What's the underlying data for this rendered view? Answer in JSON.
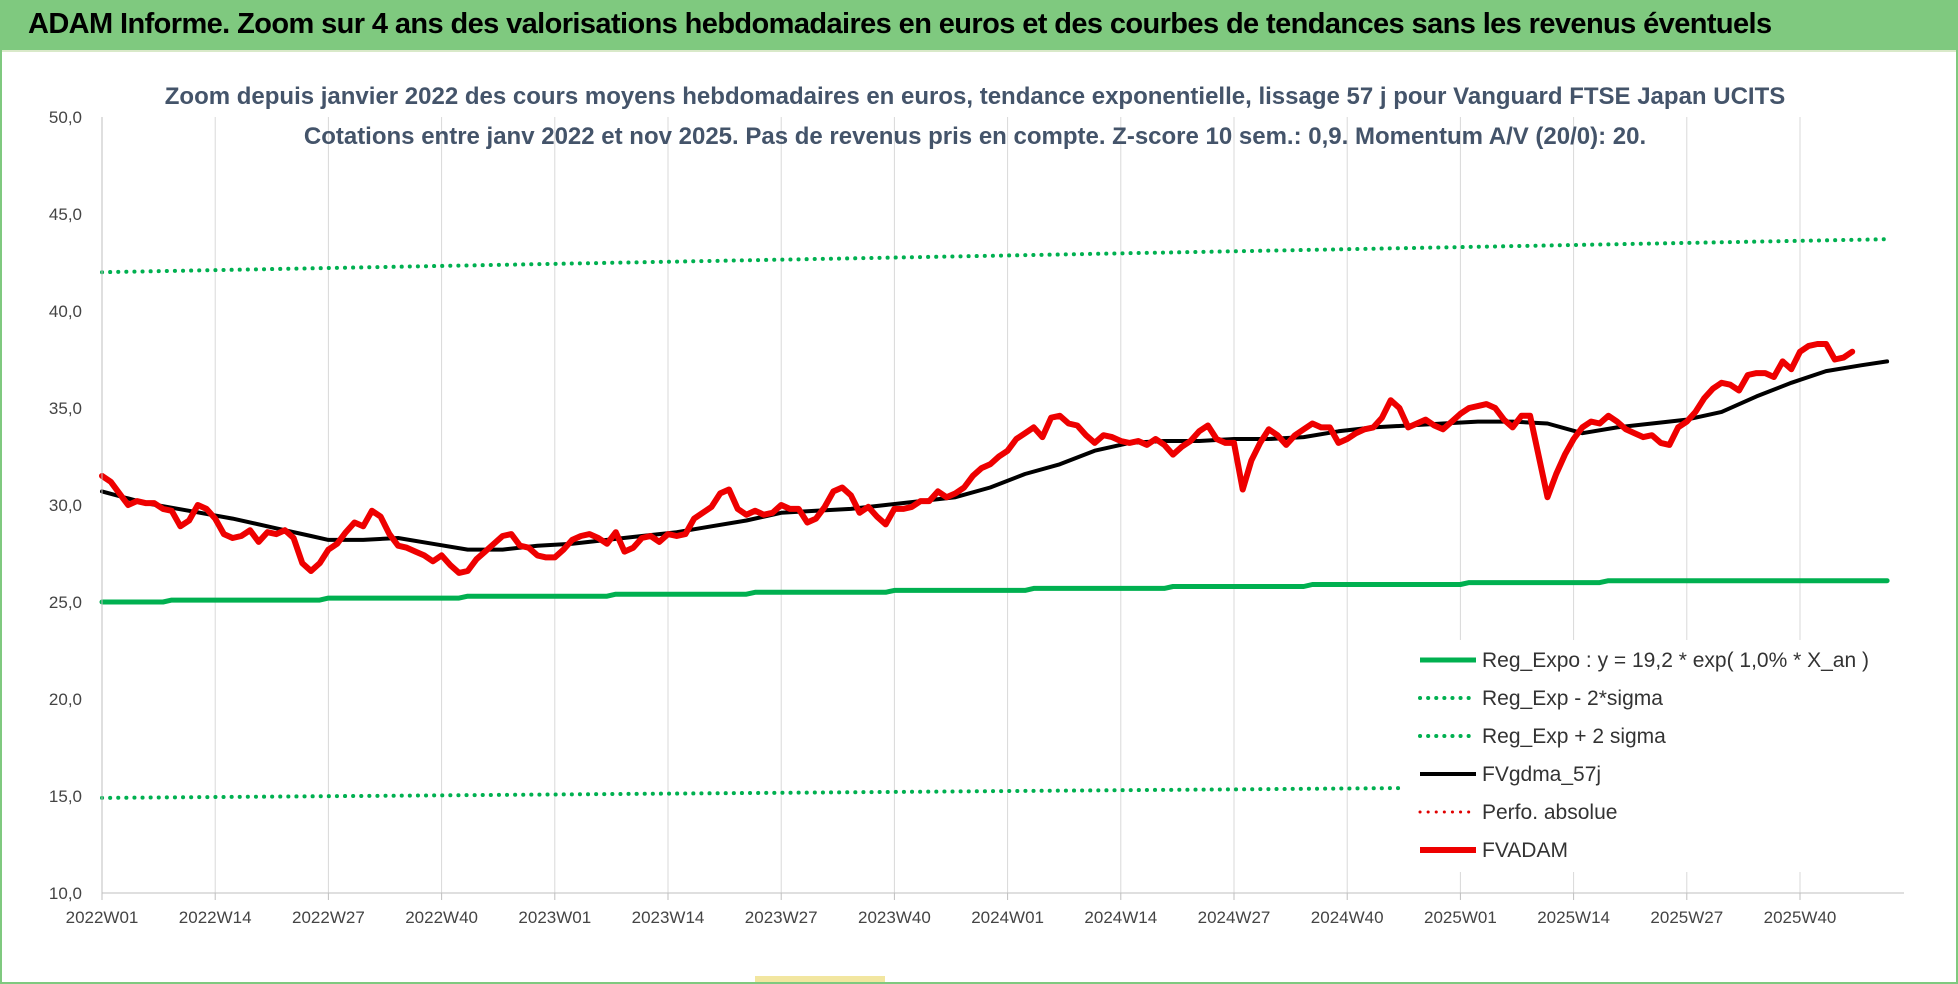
{
  "banner": {
    "title": "ADAM Informe. Zoom sur 4 ans des valorisations hebdomadaires en euros et des courbes de tendances sans les revenus éventuels",
    "color": "#7fc97f"
  },
  "chart_data": {
    "type": "line",
    "title": "Zoom depuis janvier 2022 des cours moyens hebdomadaires en euros, tendance exponentielle, lissage 57 j pour Vanguard FTSE Japan UCITS",
    "subtitle": "Cotations entre janv 2022 et nov 2025. Pas de revenus pris en compte. Z-score 10 sem.: 0,9. Momentum A/V (20/0): 20.",
    "xlabel": "",
    "ylabel": "",
    "ylim": [
      10,
      50
    ],
    "yticks": [
      "10,0",
      "15,0",
      "20,0",
      "25,0",
      "30,0",
      "35,0",
      "40,0",
      "45,0",
      "50,0"
    ],
    "xlim": [
      0,
      196
    ],
    "x_ticks": [
      {
        "label": "2022W01",
        "x": 0
      },
      {
        "label": "2022W14",
        "x": 13
      },
      {
        "label": "2022W27",
        "x": 26
      },
      {
        "label": "2022W40",
        "x": 39
      },
      {
        "label": "2023W01",
        "x": 52
      },
      {
        "label": "2023W14",
        "x": 65
      },
      {
        "label": "2023W27",
        "x": 78
      },
      {
        "label": "2023W40",
        "x": 91
      },
      {
        "label": "2024W01",
        "x": 104
      },
      {
        "label": "2024W14",
        "x": 117
      },
      {
        "label": "2024W27",
        "x": 130
      },
      {
        "label": "2024W40",
        "x": 143
      },
      {
        "label": "2025W01",
        "x": 156
      },
      {
        "label": "2025W14",
        "x": 169
      },
      {
        "label": "2025W27",
        "x": 182
      },
      {
        "label": "2025W40",
        "x": 195
      }
    ],
    "grid": "vertical",
    "legend_position": "right",
    "series": [
      {
        "name": "Reg_Expo : y = 19,2 * exp( 1,0% * X_an )",
        "color": "#00b050",
        "style": "solid",
        "width": 5,
        "points": [
          [
            0,
            25.0
          ],
          [
            7,
            25.0
          ],
          [
            8,
            25.1
          ],
          [
            25,
            25.1
          ],
          [
            26,
            25.2
          ],
          [
            41,
            25.2
          ],
          [
            42,
            25.3
          ],
          [
            58,
            25.3
          ],
          [
            59,
            25.4
          ],
          [
            74,
            25.4
          ],
          [
            75,
            25.5
          ],
          [
            90,
            25.5
          ],
          [
            91,
            25.6
          ],
          [
            106,
            25.6
          ],
          [
            107,
            25.7
          ],
          [
            122,
            25.7
          ],
          [
            123,
            25.8
          ],
          [
            138,
            25.8
          ],
          [
            139,
            25.9
          ],
          [
            156,
            25.9
          ],
          [
            157,
            26.0
          ],
          [
            172,
            26.0
          ],
          [
            173,
            26.1
          ],
          [
            205,
            26.1
          ]
        ]
      },
      {
        "name": "Reg_Exp - 2*sigma",
        "color": "#00b050",
        "style": "dotted",
        "width": 4,
        "points": [
          [
            0,
            14.9
          ],
          [
            205,
            15.6
          ]
        ]
      },
      {
        "name": "Reg_Exp + 2 sigma",
        "color": "#00b050",
        "style": "dotted",
        "width": 4,
        "points": [
          [
            0,
            42.0
          ],
          [
            205,
            43.7
          ]
        ]
      },
      {
        "name": "FVgdma_57j",
        "color": "#000000",
        "style": "solid",
        "width": 4,
        "points": [
          [
            0,
            30.7
          ],
          [
            5,
            30.1
          ],
          [
            10,
            29.7
          ],
          [
            15,
            29.3
          ],
          [
            20,
            28.8
          ],
          [
            24,
            28.4
          ],
          [
            26,
            28.2
          ],
          [
            30,
            28.2
          ],
          [
            34,
            28.3
          ],
          [
            38,
            28.0
          ],
          [
            42,
            27.7
          ],
          [
            46,
            27.7
          ],
          [
            50,
            27.9
          ],
          [
            54,
            28.0
          ],
          [
            58,
            28.2
          ],
          [
            62,
            28.4
          ],
          [
            66,
            28.6
          ],
          [
            70,
            28.9
          ],
          [
            74,
            29.2
          ],
          [
            78,
            29.6
          ],
          [
            82,
            29.7
          ],
          [
            86,
            29.8
          ],
          [
            90,
            30.0
          ],
          [
            94,
            30.2
          ],
          [
            98,
            30.4
          ],
          [
            102,
            30.9
          ],
          [
            106,
            31.6
          ],
          [
            110,
            32.1
          ],
          [
            114,
            32.8
          ],
          [
            118,
            33.2
          ],
          [
            122,
            33.3
          ],
          [
            126,
            33.3
          ],
          [
            130,
            33.4
          ],
          [
            134,
            33.4
          ],
          [
            138,
            33.5
          ],
          [
            142,
            33.8
          ],
          [
            146,
            34.0
          ],
          [
            150,
            34.1
          ],
          [
            154,
            34.2
          ],
          [
            158,
            34.3
          ],
          [
            162,
            34.3
          ],
          [
            166,
            34.2
          ],
          [
            170,
            33.7
          ],
          [
            174,
            34.0
          ],
          [
            178,
            34.2
          ],
          [
            182,
            34.4
          ],
          [
            186,
            34.8
          ],
          [
            190,
            35.6
          ],
          [
            194,
            36.3
          ],
          [
            198,
            36.9
          ],
          [
            202,
            37.2
          ],
          [
            205,
            37.4
          ]
        ]
      },
      {
        "name": "Perfo. absolue",
        "color": "#e00000",
        "style": "dotted",
        "width": 3,
        "points": []
      },
      {
        "name": "FVADAM",
        "color": "#ee0000",
        "style": "solid",
        "width": 6,
        "points": [
          [
            0,
            31.5
          ],
          [
            1,
            31.2
          ],
          [
            2,
            30.6
          ],
          [
            3,
            30.0
          ],
          [
            4,
            30.2
          ],
          [
            5,
            30.1
          ],
          [
            6,
            30.1
          ],
          [
            7,
            29.8
          ],
          [
            8,
            29.7
          ],
          [
            9,
            28.9
          ],
          [
            10,
            29.2
          ],
          [
            11,
            30.0
          ],
          [
            12,
            29.8
          ],
          [
            13,
            29.3
          ],
          [
            14,
            28.5
          ],
          [
            15,
            28.3
          ],
          [
            16,
            28.4
          ],
          [
            17,
            28.7
          ],
          [
            18,
            28.1
          ],
          [
            19,
            28.6
          ],
          [
            20,
            28.5
          ],
          [
            21,
            28.7
          ],
          [
            22,
            28.3
          ],
          [
            23,
            27.0
          ],
          [
            24,
            26.6
          ],
          [
            25,
            27.0
          ],
          [
            26,
            27.7
          ],
          [
            27,
            28.0
          ],
          [
            28,
            28.6
          ],
          [
            29,
            29.1
          ],
          [
            30,
            28.9
          ],
          [
            31,
            29.7
          ],
          [
            32,
            29.4
          ],
          [
            33,
            28.5
          ],
          [
            34,
            27.9
          ],
          [
            35,
            27.8
          ],
          [
            36,
            27.6
          ],
          [
            37,
            27.4
          ],
          [
            38,
            27.1
          ],
          [
            39,
            27.4
          ],
          [
            40,
            26.9
          ],
          [
            41,
            26.5
          ],
          [
            42,
            26.6
          ],
          [
            43,
            27.2
          ],
          [
            44,
            27.6
          ],
          [
            45,
            28.0
          ],
          [
            46,
            28.4
          ],
          [
            47,
            28.5
          ],
          [
            48,
            27.9
          ],
          [
            49,
            27.8
          ],
          [
            50,
            27.4
          ],
          [
            51,
            27.3
          ],
          [
            52,
            27.3
          ],
          [
            53,
            27.7
          ],
          [
            54,
            28.2
          ],
          [
            55,
            28.4
          ],
          [
            56,
            28.5
          ],
          [
            57,
            28.3
          ],
          [
            58,
            28.0
          ],
          [
            59,
            28.6
          ],
          [
            60,
            27.6
          ],
          [
            61,
            27.8
          ],
          [
            62,
            28.3
          ],
          [
            63,
            28.4
          ],
          [
            64,
            28.1
          ],
          [
            65,
            28.5
          ],
          [
            66,
            28.4
          ],
          [
            67,
            28.5
          ],
          [
            68,
            29.3
          ],
          [
            69,
            29.6
          ],
          [
            70,
            29.9
          ],
          [
            71,
            30.6
          ],
          [
            72,
            30.8
          ],
          [
            73,
            29.8
          ],
          [
            74,
            29.5
          ],
          [
            75,
            29.7
          ],
          [
            76,
            29.5
          ],
          [
            77,
            29.6
          ],
          [
            78,
            30.0
          ],
          [
            79,
            29.8
          ],
          [
            80,
            29.8
          ],
          [
            81,
            29.1
          ],
          [
            82,
            29.3
          ],
          [
            83,
            29.9
          ],
          [
            84,
            30.7
          ],
          [
            85,
            30.9
          ],
          [
            86,
            30.5
          ],
          [
            87,
            29.6
          ],
          [
            88,
            29.9
          ],
          [
            89,
            29.4
          ],
          [
            90,
            29.0
          ],
          [
            91,
            29.8
          ],
          [
            92,
            29.8
          ],
          [
            93,
            29.9
          ],
          [
            94,
            30.2
          ],
          [
            95,
            30.2
          ],
          [
            96,
            30.7
          ],
          [
            97,
            30.4
          ],
          [
            98,
            30.6
          ],
          [
            99,
            30.9
          ],
          [
            100,
            31.5
          ],
          [
            101,
            31.9
          ],
          [
            102,
            32.1
          ],
          [
            103,
            32.5
          ],
          [
            104,
            32.8
          ],
          [
            105,
            33.4
          ],
          [
            106,
            33.7
          ],
          [
            107,
            34.0
          ],
          [
            108,
            33.5
          ],
          [
            109,
            34.5
          ],
          [
            110,
            34.6
          ],
          [
            111,
            34.2
          ],
          [
            112,
            34.1
          ],
          [
            113,
            33.6
          ],
          [
            114,
            33.2
          ],
          [
            115,
            33.6
          ],
          [
            116,
            33.5
          ],
          [
            117,
            33.3
          ],
          [
            118,
            33.2
          ],
          [
            119,
            33.3
          ],
          [
            120,
            33.1
          ],
          [
            121,
            33.4
          ],
          [
            122,
            33.1
          ],
          [
            123,
            32.6
          ],
          [
            124,
            33.0
          ],
          [
            125,
            33.3
          ],
          [
            126,
            33.8
          ],
          [
            127,
            34.1
          ],
          [
            128,
            33.4
          ],
          [
            129,
            33.2
          ],
          [
            130,
            33.2
          ],
          [
            131,
            30.8
          ],
          [
            132,
            32.3
          ],
          [
            133,
            33.2
          ],
          [
            134,
            33.9
          ],
          [
            135,
            33.6
          ],
          [
            136,
            33.1
          ],
          [
            137,
            33.6
          ],
          [
            138,
            33.9
          ],
          [
            139,
            34.2
          ],
          [
            140,
            34.0
          ],
          [
            141,
            34.0
          ],
          [
            142,
            33.2
          ],
          [
            143,
            33.4
          ],
          [
            144,
            33.7
          ],
          [
            145,
            33.9
          ],
          [
            146,
            34.0
          ],
          [
            147,
            34.5
          ],
          [
            148,
            35.4
          ],
          [
            149,
            35.0
          ],
          [
            150,
            34.0
          ],
          [
            151,
            34.2
          ],
          [
            152,
            34.4
          ],
          [
            153,
            34.1
          ],
          [
            154,
            33.9
          ],
          [
            155,
            34.3
          ],
          [
            156,
            34.7
          ],
          [
            157,
            35.0
          ],
          [
            158,
            35.1
          ],
          [
            159,
            35.2
          ],
          [
            160,
            35.0
          ],
          [
            161,
            34.4
          ],
          [
            162,
            34.0
          ],
          [
            163,
            34.6
          ],
          [
            164,
            34.6
          ],
          [
            165,
            32.5
          ],
          [
            166,
            30.4
          ],
          [
            167,
            31.6
          ],
          [
            168,
            32.6
          ],
          [
            169,
            33.4
          ],
          [
            170,
            34.0
          ],
          [
            171,
            34.3
          ],
          [
            172,
            34.2
          ],
          [
            173,
            34.6
          ],
          [
            174,
            34.3
          ],
          [
            175,
            33.9
          ],
          [
            176,
            33.7
          ],
          [
            177,
            33.5
          ],
          [
            178,
            33.6
          ],
          [
            179,
            33.2
          ],
          [
            180,
            33.1
          ],
          [
            181,
            34.0
          ],
          [
            182,
            34.3
          ],
          [
            183,
            34.8
          ],
          [
            184,
            35.5
          ],
          [
            185,
            36.0
          ],
          [
            186,
            36.3
          ],
          [
            187,
            36.2
          ],
          [
            188,
            35.9
          ],
          [
            189,
            36.7
          ],
          [
            190,
            36.8
          ],
          [
            191,
            36.8
          ],
          [
            192,
            36.6
          ],
          [
            193,
            37.4
          ],
          [
            194,
            37.0
          ],
          [
            195,
            37.9
          ],
          [
            196,
            38.2
          ],
          [
            197,
            38.3
          ],
          [
            198,
            38.3
          ],
          [
            199,
            37.5
          ],
          [
            200,
            37.6
          ],
          [
            201,
            37.9
          ]
        ]
      }
    ]
  }
}
